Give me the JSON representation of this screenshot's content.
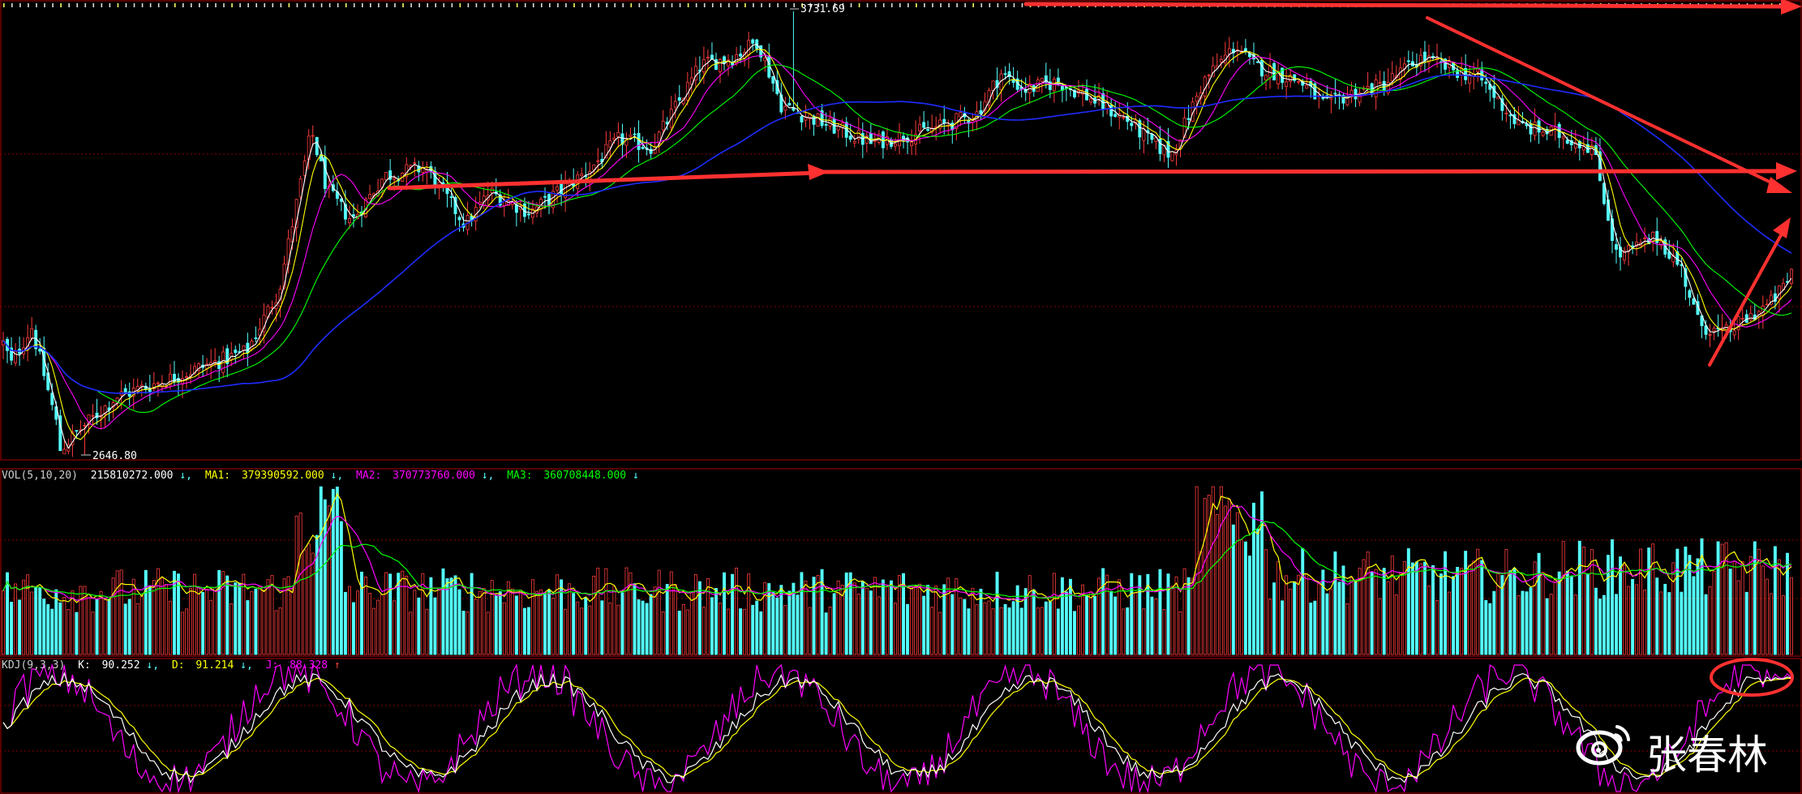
{
  "chart_data": [
    {
      "type": "candlestick",
      "panel": "price",
      "annotations": {
        "high_label": "3731.69",
        "low_label": "2646.80"
      },
      "moving_average_colors": [
        "#ffffff",
        "#ffff00",
        "#ff00ff",
        "#00ff00",
        "#1e2cff"
      ],
      "key_price_points": [
        [
          0,
          2920
        ],
        [
          10,
          2870
        ],
        [
          35,
          2960
        ],
        [
          65,
          2730
        ],
        [
          70,
          2660
        ],
        [
          95,
          2710
        ],
        [
          140,
          2790
        ],
        [
          200,
          2830
        ],
        [
          300,
          2900
        ],
        [
          340,
          3050
        ],
        [
          380,
          3440
        ],
        [
          400,
          3290
        ],
        [
          430,
          3220
        ],
        [
          470,
          3330
        ],
        [
          520,
          3350
        ],
        [
          570,
          3210
        ],
        [
          600,
          3290
        ],
        [
          650,
          3240
        ],
        [
          720,
          3340
        ],
        [
          760,
          3420
        ],
        [
          800,
          3400
        ],
        [
          860,
          3600
        ],
        [
          900,
          3620
        ],
        [
          930,
          3660
        ],
        [
          960,
          3500
        ],
        [
          1010,
          3460
        ],
        [
          1070,
          3410
        ],
        [
          1140,
          3440
        ],
        [
          1200,
          3480
        ],
        [
          1230,
          3580
        ],
        [
          1260,
          3540
        ],
        [
          1300,
          3560
        ],
        [
          1340,
          3520
        ],
        [
          1390,
          3460
        ],
        [
          1410,
          3420
        ],
        [
          1440,
          3380
        ],
        [
          1480,
          3560
        ],
        [
          1520,
          3650
        ],
        [
          1540,
          3600
        ],
        [
          1600,
          3560
        ],
        [
          1630,
          3500
        ],
        [
          1660,
          3530
        ],
        [
          1700,
          3550
        ],
        [
          1750,
          3620
        ],
        [
          1770,
          3600
        ],
        [
          1820,
          3570
        ],
        [
          1870,
          3450
        ],
        [
          1920,
          3430
        ],
        [
          1960,
          3400
        ],
        [
          1990,
          3130
        ],
        [
          2010,
          3150
        ],
        [
          2040,
          3180
        ],
        [
          2070,
          3100
        ],
        [
          2090,
          2970
        ],
        [
          2120,
          2940
        ],
        [
          2150,
          2980
        ],
        [
          2180,
          3020
        ],
        [
          2200,
          3070
        ],
        [
          2210,
          3130
        ]
      ]
    },
    {
      "type": "bar",
      "panel": "volume",
      "label_prefix": "VOL(5,10,20)",
      "value": "215810272.000",
      "ma_labels": [
        {
          "name": "MA1:",
          "value": "379390592.000",
          "color": "#ffff00"
        },
        {
          "name": "MA2:",
          "value": "370773760.000",
          "color": "#ff00ff"
        },
        {
          "name": "MA3:",
          "value": "360708448.000",
          "color": "#00ff00"
        }
      ],
      "up_color": "#ff3c3c",
      "down_color": "#54ffff"
    },
    {
      "type": "line",
      "panel": "kdj",
      "label_prefix": "KDJ(9,3,3)",
      "series": [
        {
          "name": "K:",
          "value": "90.252",
          "color": "#ffffff"
        },
        {
          "name": "D:",
          "value": "91.214",
          "color": "#ffff00"
        },
        {
          "name": "J:",
          "value": "88.328",
          "color": "#ff00ff"
        }
      ]
    }
  ],
  "watermark": {
    "text": "张春林"
  }
}
